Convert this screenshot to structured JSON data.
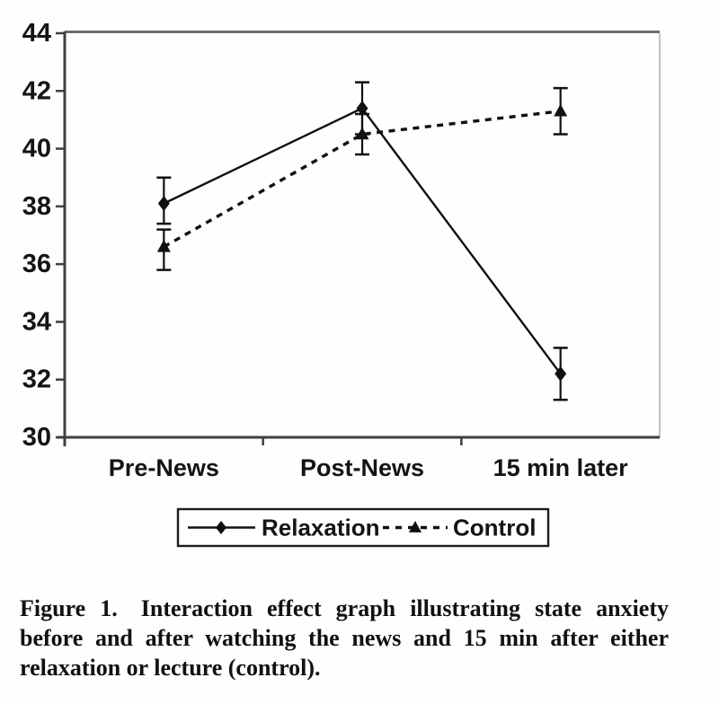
{
  "figure": {
    "caption_lines": [
      "Figure 1. Interaction effect graph illustrating state anxiety",
      "before and after watching the news and 15 min after either",
      "relaxation or lecture (control)."
    ]
  },
  "chart_data": {
    "type": "line",
    "title": "",
    "xlabel": "",
    "ylabel": "",
    "categories": [
      "Pre-News",
      "Post-News",
      "15 min later"
    ],
    "series": [
      {
        "name": "Relaxation",
        "values": [
          38.1,
          41.4,
          32.2
        ],
        "error_low": [
          37.4,
          40.5,
          31.3
        ],
        "error_high": [
          39.0,
          42.3,
          33.1
        ],
        "line_style": "solid",
        "marker": "diamond"
      },
      {
        "name": "Control",
        "values": [
          36.6,
          40.5,
          41.3
        ],
        "error_low": [
          35.8,
          39.8,
          40.5
        ],
        "error_high": [
          37.2,
          41.2,
          42.1
        ],
        "line_style": "dashed",
        "marker": "triangle"
      }
    ],
    "ylim": [
      30,
      44
    ],
    "yticks": [
      30,
      32,
      34,
      36,
      38,
      40,
      42,
      44
    ],
    "grid": false,
    "legend_position": "bottom",
    "error_bars": true,
    "colors": {
      "data": "#101010",
      "axis_dark": "#3f3f3f",
      "frame_top": "#6e6e6e",
      "frame_right": "#c2c2c2",
      "text": "#141414",
      "background": "#fefefe"
    }
  }
}
